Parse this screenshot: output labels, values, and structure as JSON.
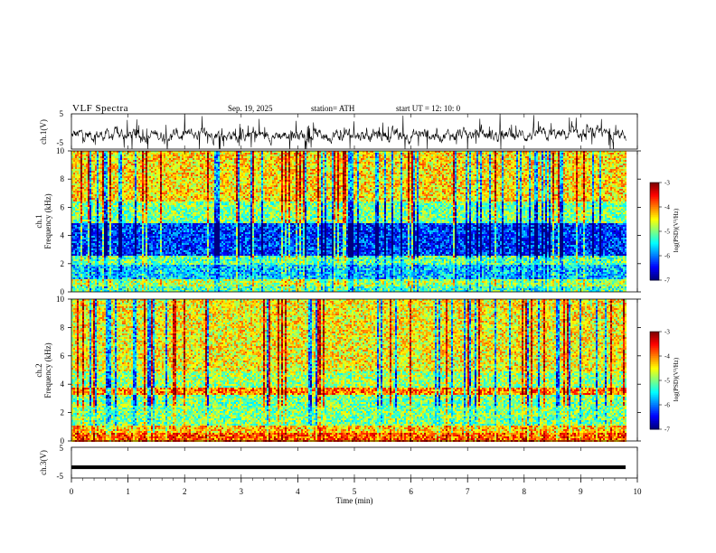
{
  "header": {
    "title": "VLF  Spectra",
    "date": "Sep. 19, 2025",
    "station": "station= ATH",
    "start": "start  UT  =    12: 10: 0"
  },
  "chart_data": [
    {
      "type": "line",
      "name": "ch1-waveform",
      "ylabel": "ch.1(V)",
      "ylim": [
        -5,
        5
      ],
      "yticks": [
        "5",
        "-5"
      ],
      "xlim": [
        0,
        10
      ],
      "description_values": "dense noisy waveform spanning roughly -5 to 5 V from 0 to 9.8 min"
    },
    {
      "type": "heatmap",
      "name": "ch1-spectrogram",
      "ylabel": "ch.1\nFrequency (kHz)",
      "ylabel_lines": [
        "ch.1",
        "Frequency  (kHz)"
      ],
      "ylim": [
        0,
        10
      ],
      "yticks": [
        "0",
        "2",
        "4",
        "6",
        "8",
        "10"
      ],
      "xlim": [
        0,
        9.8
      ],
      "colorbar": {
        "label": "log(PSD)(V²/Hz)",
        "range": [
          -7,
          -3
        ],
        "ticks": [
          "-3",
          "-4",
          "-5",
          "-6",
          "-7"
        ]
      },
      "bands_kHz": [
        {
          "from": 0,
          "to": 0.5,
          "level": -5.2
        },
        {
          "from": 0.5,
          "to": 1.0,
          "level": -4.8
        },
        {
          "from": 1.0,
          "to": 2.0,
          "level": -5.7
        },
        {
          "from": 2.0,
          "to": 2.6,
          "level": -5.1
        },
        {
          "from": 2.6,
          "to": 5.0,
          "level": -6.3
        },
        {
          "from": 5.0,
          "to": 6.5,
          "level": -5.0
        },
        {
          "from": 6.5,
          "to": 10.0,
          "level": -4.4
        }
      ]
    },
    {
      "type": "heatmap",
      "name": "ch2-spectrogram",
      "ylabel": "ch.2\nFrequency (kHz)",
      "ylabel_lines": [
        "ch.2",
        "Frequency  (kHz)"
      ],
      "ylim": [
        0,
        10
      ],
      "yticks": [
        "0",
        "2",
        "4",
        "6",
        "8",
        "10"
      ],
      "xlim": [
        0,
        9.8
      ],
      "colorbar": {
        "label": "log(PSD)(V²/Hz)",
        "range": [
          -7,
          -3
        ],
        "ticks": [
          "-3",
          "-4",
          "-5",
          "-6",
          "-7"
        ]
      },
      "bands_kHz": [
        {
          "from": 0,
          "to": 0.6,
          "level": -3.8
        },
        {
          "from": 0.6,
          "to": 1.2,
          "level": -4.3
        },
        {
          "from": 1.2,
          "to": 3.3,
          "level": -5.0
        },
        {
          "from": 3.3,
          "to": 3.8,
          "level": -4.0
        },
        {
          "from": 3.8,
          "to": 5.0,
          "level": -4.9
        },
        {
          "from": 5.0,
          "to": 10.0,
          "level": -4.5
        }
      ]
    },
    {
      "type": "line",
      "name": "ch3-waveform",
      "ylabel": "ch.3(V)",
      "ylim": [
        -5,
        5
      ],
      "yticks": [
        "5",
        "-5"
      ],
      "xlim": [
        0,
        10
      ],
      "values_note": "flat thick trace near -1.5 V from 0 to 9.8 min"
    }
  ],
  "xaxis": {
    "label": "Time  (min)",
    "ticks": [
      "0",
      "1",
      "2",
      "3",
      "4",
      "5",
      "6",
      "7",
      "8",
      "9",
      "10"
    ],
    "range": [
      0,
      10
    ]
  },
  "ch3_level": -1.5
}
